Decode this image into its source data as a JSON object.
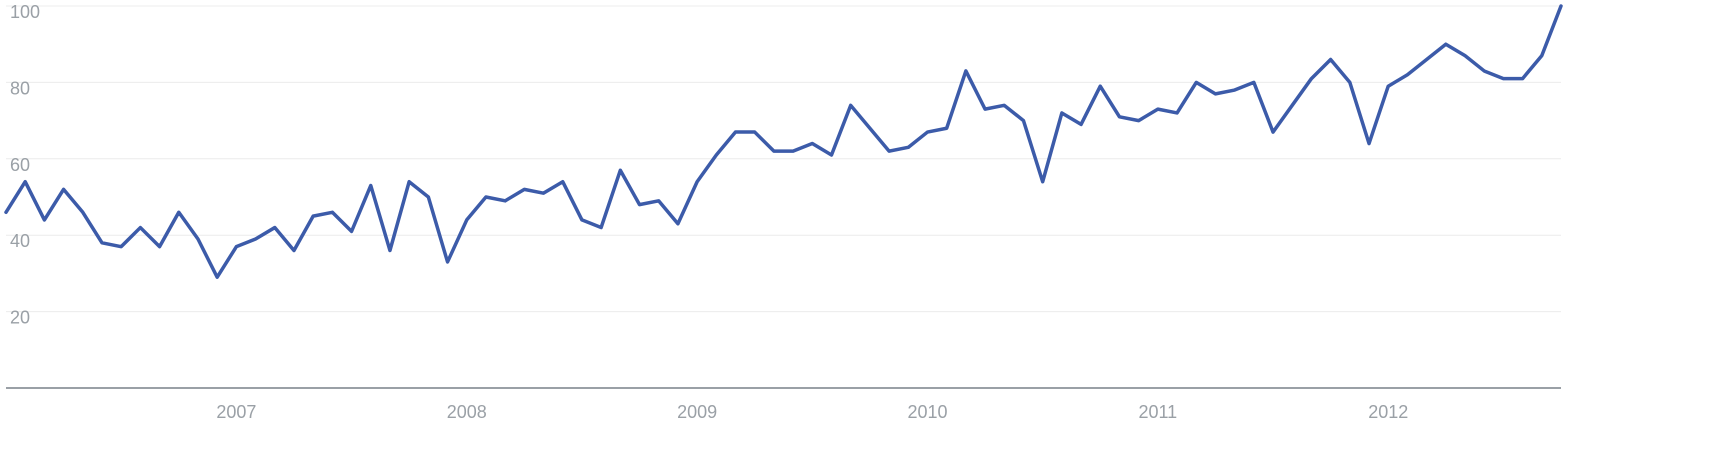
{
  "chart_data": {
    "type": "line",
    "title": "",
    "xlabel": "",
    "ylabel": "",
    "ylim": [
      0,
      100
    ],
    "xlim": [
      "2006-01",
      "2012-10"
    ],
    "grid": true,
    "legend": "none",
    "y_ticks": [
      {
        "value": 20,
        "label": "20"
      },
      {
        "value": 40,
        "label": "40"
      },
      {
        "value": 60,
        "label": "60"
      },
      {
        "value": 80,
        "label": "80"
      },
      {
        "value": 100,
        "label": "100"
      }
    ],
    "x_ticks": [
      {
        "value": "2007-01",
        "label": "2007"
      },
      {
        "value": "2008-01",
        "label": "2008"
      },
      {
        "value": "2009-01",
        "label": "2009"
      },
      {
        "value": "2010-01",
        "label": "2010"
      },
      {
        "value": "2011-01",
        "label": "2011"
      },
      {
        "value": "2012-01",
        "label": "2012"
      }
    ],
    "series": [
      {
        "color": "#3c5ba9",
        "points": [
          [
            "2006-01",
            46
          ],
          [
            "2006-02",
            54
          ],
          [
            "2006-03",
            44
          ],
          [
            "2006-04",
            52
          ],
          [
            "2006-05",
            46
          ],
          [
            "2006-06",
            38
          ],
          [
            "2006-07",
            37
          ],
          [
            "2006-08",
            42
          ],
          [
            "2006-09",
            37
          ],
          [
            "2006-10",
            46
          ],
          [
            "2006-11",
            39
          ],
          [
            "2006-12",
            29
          ],
          [
            "2007-01",
            37
          ],
          [
            "2007-02",
            39
          ],
          [
            "2007-03",
            42
          ],
          [
            "2007-04",
            36
          ],
          [
            "2007-05",
            45
          ],
          [
            "2007-06",
            46
          ],
          [
            "2007-07",
            41
          ],
          [
            "2007-08",
            53
          ],
          [
            "2007-09",
            36
          ],
          [
            "2007-10",
            54
          ],
          [
            "2007-11",
            50
          ],
          [
            "2007-12",
            33
          ],
          [
            "2008-01",
            44
          ],
          [
            "2008-02",
            50
          ],
          [
            "2008-03",
            49
          ],
          [
            "2008-04",
            52
          ],
          [
            "2008-05",
            51
          ],
          [
            "2008-06",
            54
          ],
          [
            "2008-07",
            44
          ],
          [
            "2008-08",
            42
          ],
          [
            "2008-09",
            57
          ],
          [
            "2008-10",
            48
          ],
          [
            "2008-11",
            49
          ],
          [
            "2008-12",
            43
          ],
          [
            "2009-01",
            54
          ],
          [
            "2009-02",
            61
          ],
          [
            "2009-03",
            67
          ],
          [
            "2009-04",
            67
          ],
          [
            "2009-05",
            62
          ],
          [
            "2009-06",
            62
          ],
          [
            "2009-07",
            64
          ],
          [
            "2009-08",
            61
          ],
          [
            "2009-09",
            74
          ],
          [
            "2009-10",
            68
          ],
          [
            "2009-11",
            62
          ],
          [
            "2009-12",
            63
          ],
          [
            "2010-01",
            67
          ],
          [
            "2010-02",
            68
          ],
          [
            "2010-03",
            83
          ],
          [
            "2010-04",
            73
          ],
          [
            "2010-05",
            74
          ],
          [
            "2010-06",
            70
          ],
          [
            "2010-07",
            54
          ],
          [
            "2010-08",
            72
          ],
          [
            "2010-09",
            69
          ],
          [
            "2010-10",
            79
          ],
          [
            "2010-11",
            71
          ],
          [
            "2010-12",
            70
          ],
          [
            "2011-01",
            73
          ],
          [
            "2011-02",
            72
          ],
          [
            "2011-03",
            80
          ],
          [
            "2011-04",
            77
          ],
          [
            "2011-05",
            78
          ],
          [
            "2011-06",
            80
          ],
          [
            "2011-07",
            67
          ],
          [
            "2011-08",
            74
          ],
          [
            "2011-09",
            81
          ],
          [
            "2011-10",
            86
          ],
          [
            "2011-11",
            80
          ],
          [
            "2011-12",
            64
          ],
          [
            "2012-01",
            79
          ],
          [
            "2012-02",
            82
          ],
          [
            "2012-03",
            86
          ],
          [
            "2012-04",
            90
          ],
          [
            "2012-05",
            87
          ],
          [
            "2012-06",
            83
          ],
          [
            "2012-07",
            81
          ],
          [
            "2012-08",
            81
          ],
          [
            "2012-09",
            87
          ],
          [
            "2012-10",
            100
          ]
        ]
      }
    ]
  }
}
